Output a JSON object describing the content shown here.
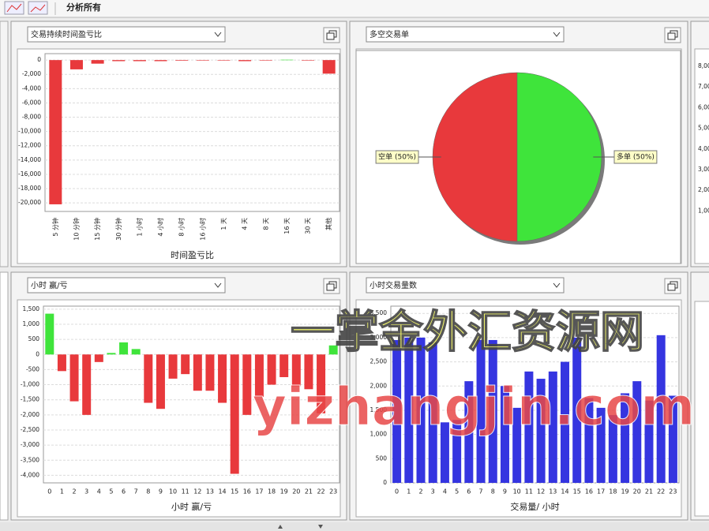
{
  "toolbar": {
    "title": "分析所有"
  },
  "chart_data": [
    {
      "type": "bar",
      "title": "交易持续时间盈亏比",
      "x_label": "时间盈亏比",
      "categories": [
        "5 分钟",
        "10 分钟",
        "15 分钟",
        "30 分钟",
        "1 小时",
        "4 小时",
        "8 小时",
        "16 小时",
        "1 天",
        "4 天",
        "8 天",
        "16 天",
        "30 天",
        "其他"
      ],
      "values": [
        -20200,
        -1300,
        -500,
        -150,
        -150,
        -150,
        -80,
        -50,
        0,
        -150,
        0,
        50,
        0,
        -1900
      ],
      "negative_color": "#e8393c",
      "positive_color": "#3fe43b",
      "ylim": [
        -21200,
        900
      ],
      "yticks": [
        0,
        {
          "value": -2000,
          "label": "-2,000"
        },
        {
          "value": -4000,
          "label": "-4,000"
        },
        {
          "value": -6000,
          "label": "-6,000"
        },
        {
          "value": -8000,
          "label": "-8,000"
        },
        {
          "value": -10000,
          "label": "-10,000"
        },
        {
          "value": -12000,
          "label": "-12,000"
        },
        {
          "value": -14000,
          "label": "-14,000"
        },
        {
          "value": -16000,
          "label": "-16,000"
        },
        {
          "value": -18000,
          "label": "-18,000"
        },
        {
          "value": -20000,
          "label": "-20,000"
        }
      ],
      "grid": true
    },
    {
      "type": "pie",
      "title": "多空交易单",
      "categories": [
        "空单 (50%)",
        "多单 (50%)"
      ],
      "values": [
        50,
        50
      ],
      "colors": [
        "#e8393c",
        "#3fe43b"
      ]
    },
    {
      "type": "bar",
      "title": "小时 赢/亏",
      "x_label": "小时 赢/亏",
      "categories": [
        "0",
        "1",
        "2",
        "3",
        "4",
        "5",
        "6",
        "7",
        "8",
        "9",
        "10",
        "11",
        "12",
        "13",
        "14",
        "15",
        "16",
        "17",
        "18",
        "19",
        "20",
        "21",
        "22",
        "23"
      ],
      "values": [
        1350,
        -550,
        -1550,
        -2000,
        -250,
        50,
        400,
        180,
        -1600,
        -1800,
        -800,
        -650,
        -1200,
        -1200,
        -1600,
        -3950,
        -2000,
        -1400,
        -1000,
        -750,
        -1050,
        -1150,
        -1950,
        300
      ],
      "negative_color": "#e8393c",
      "positive_color": "#3fe43b",
      "ylim": [
        -4250,
        1600
      ],
      "yticks": [
        {
          "value": 1500,
          "label": "1,500"
        },
        {
          "value": 1000,
          "label": "1,000"
        },
        500,
        0,
        -500,
        {
          "value": -1000,
          "label": "-1,000"
        },
        {
          "value": -1500,
          "label": "-1,500"
        },
        {
          "value": -2000,
          "label": "-2,000"
        },
        {
          "value": -2500,
          "label": "-2,500"
        },
        {
          "value": -3000,
          "label": "-3,000"
        },
        {
          "value": -3500,
          "label": "-3,500"
        },
        {
          "value": -4000,
          "label": "-4,000"
        }
      ],
      "grid": true
    },
    {
      "type": "bar",
      "title": "小时交易量数",
      "x_label": "交易量/ 小时",
      "categories": [
        "0",
        "1",
        "2",
        "3",
        "4",
        "5",
        "6",
        "7",
        "8",
        "9",
        "10",
        "11",
        "12",
        "13",
        "14",
        "15",
        "16",
        "17",
        "18",
        "19",
        "20",
        "21",
        "22",
        "23"
      ],
      "values": [
        2950,
        3000,
        3000,
        2900,
        1250,
        1300,
        2100,
        2950,
        2950,
        2000,
        1550,
        2300,
        2150,
        2300,
        2500,
        3000,
        1750,
        1550,
        1400,
        1850,
        2100,
        1700,
        3050,
        1800
      ],
      "color": "#3535e0",
      "ylim": [
        0,
        3650
      ],
      "yticks": [
        0,
        500,
        {
          "value": 1000,
          "label": "1,000"
        },
        {
          "value": 1500,
          "label": "1,500"
        },
        {
          "value": 2000,
          "label": "2,000"
        },
        {
          "value": 2500,
          "label": "2,500"
        },
        {
          "value": 3000,
          "label": "3,000"
        },
        {
          "value": 3500,
          "label": "3,500"
        }
      ],
      "grid": true
    }
  ],
  "partial_axis_labels": [
    "8,00",
    "7,00",
    "6,00",
    "5,00",
    "4,00",
    "3,00",
    "2,00",
    "1,00"
  ],
  "watermark": {
    "line1": "一掌金外汇资源网",
    "line2": "yizhangjin.com"
  }
}
